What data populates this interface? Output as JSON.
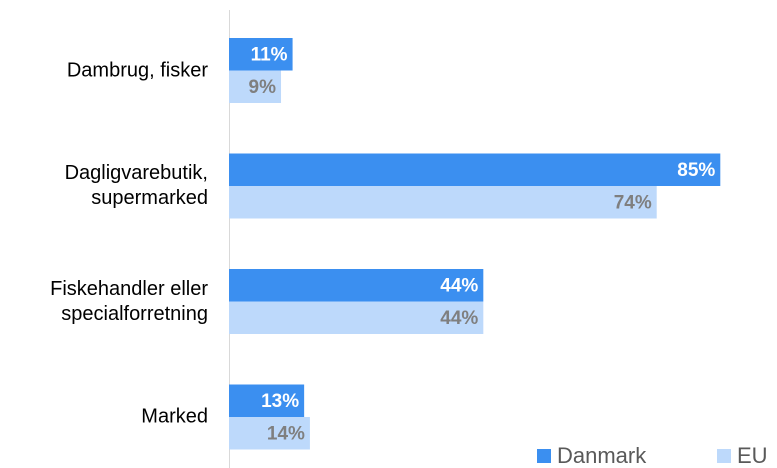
{
  "chart_data": {
    "type": "bar",
    "orientation": "horizontal",
    "categories": [
      "Dambrug, fisker",
      "Dagligvarebutik, supermarked",
      "Fiskehandler eller specialforretning",
      "Marked"
    ],
    "series": [
      {
        "name": "Danmark",
        "color": "#3b8ff0",
        "label_color": "#ffffff",
        "values": [
          11,
          85,
          44,
          13
        ],
        "value_labels": [
          "11%",
          "85%",
          "44%",
          "13%"
        ]
      },
      {
        "name": "EU",
        "color": "#bdd9fb",
        "label_color": "#7f7f7f",
        "values": [
          9,
          74,
          44,
          14
        ],
        "value_labels": [
          "9%",
          "74%",
          "44%",
          "14%"
        ]
      }
    ],
    "xlim": [
      0,
      100
    ],
    "legend": "bottom-right"
  }
}
